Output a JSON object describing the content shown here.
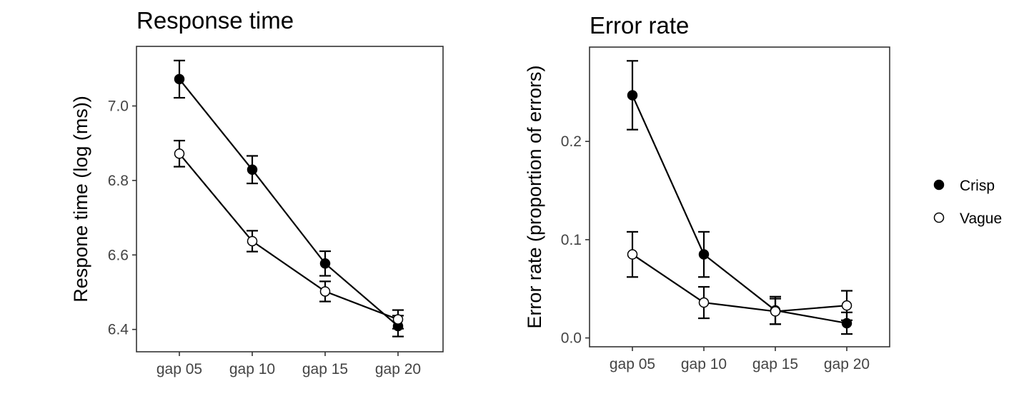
{
  "chart_data": [
    {
      "type": "line",
      "title": "Response time",
      "xlabel": "",
      "ylabel": "Respone time (log (ms))",
      "categories": [
        "gap 05",
        "gap 10",
        "gap 15",
        "gap 20"
      ],
      "ylim": [
        6.34,
        7.16
      ],
      "yticks": [
        6.4,
        6.6,
        6.8,
        7.0
      ],
      "ytick_labels": [
        "6.4",
        "6.6",
        "6.8",
        "7.0"
      ],
      "grid": false,
      "series": [
        {
          "name": "Crisp",
          "marker": "filled",
          "values": [
            7.072,
            6.829,
            6.577,
            6.409
          ],
          "error": [
            0.05,
            0.037,
            0.033,
            0.028
          ]
        },
        {
          "name": "Vague",
          "marker": "open",
          "values": [
            6.872,
            6.637,
            6.502,
            6.427
          ],
          "error": [
            0.035,
            0.028,
            0.027,
            0.025
          ]
        }
      ]
    },
    {
      "type": "line",
      "title": "Error rate",
      "xlabel": "",
      "ylabel": "Error rate (proportion of errors)",
      "categories": [
        "gap 05",
        "gap 10",
        "gap 15",
        "gap 20"
      ],
      "ylim": [
        -0.009,
        0.296
      ],
      "yticks": [
        0.0,
        0.1,
        0.2
      ],
      "ytick_labels": [
        "0.0",
        "0.1",
        "0.2"
      ],
      "grid": false,
      "series": [
        {
          "name": "Crisp",
          "marker": "filled",
          "values": [
            0.247,
            0.085,
            0.028,
            0.015
          ],
          "error": [
            0.035,
            0.023,
            0.014,
            0.011
          ]
        },
        {
          "name": "Vague",
          "marker": "open",
          "values": [
            0.085,
            0.036,
            0.027,
            0.033
          ],
          "error": [
            0.023,
            0.016,
            0.013,
            0.015
          ]
        }
      ]
    }
  ],
  "legend": {
    "placement": "right",
    "items": [
      {
        "label": "Crisp",
        "marker": "filled"
      },
      {
        "label": "Vague",
        "marker": "open"
      }
    ]
  }
}
